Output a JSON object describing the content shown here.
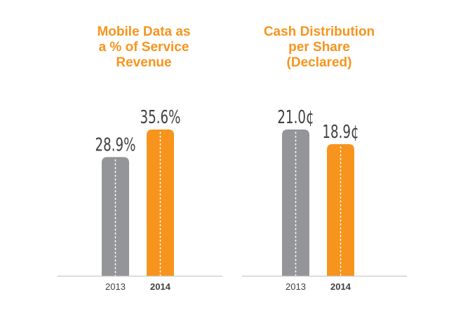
{
  "colors": {
    "accent": "#f7941d",
    "bar_2013": "#939598",
    "bar_2014": "#f7941d",
    "axis": "#c7c8ca",
    "label_text": "#414042"
  },
  "titles": [
    [
      "Mobile Data as",
      "a % of Service",
      "Revenue"
    ],
    [
      "Cash Distribution",
      "per Share",
      "(Declared)"
    ]
  ],
  "chart_data": [
    {
      "type": "bar",
      "title": "Mobile Data as a % of Service Revenue",
      "categories": [
        "2013",
        "2014"
      ],
      "values": [
        28.9,
        35.6
      ],
      "data_labels": [
        "28.9%",
        "35.6%"
      ],
      "ylim": [
        0,
        35.6
      ],
      "grid": false,
      "legend": "none"
    },
    {
      "type": "bar",
      "title": "Cash Distribution per Share (Declared)",
      "categories": [
        "2013",
        "2014"
      ],
      "values": [
        21.0,
        18.9
      ],
      "data_labels": [
        "21.0¢",
        "18.9¢"
      ],
      "ylim": [
        0,
        21.0
      ],
      "grid": false,
      "legend": "none"
    }
  ]
}
